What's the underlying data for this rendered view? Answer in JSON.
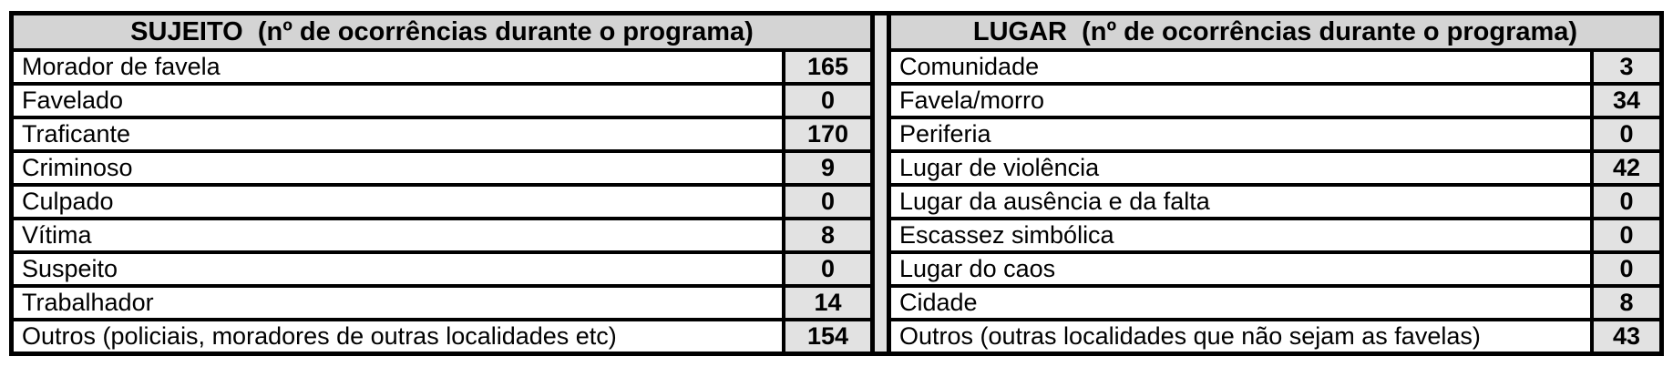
{
  "colors": {
    "border": "#000000",
    "header_bg": "#d4d4d4",
    "value_bg": "#e2e2e2",
    "row_bg": "#ffffff"
  },
  "tables": {
    "sujeito": {
      "header": "SUJEITO  (nº de ocorrências durante o programa)",
      "rows": [
        {
          "label": "Morador de favela",
          "value": "165"
        },
        {
          "label": "Favelado",
          "value": "0"
        },
        {
          "label": "Traficante",
          "value": "170"
        },
        {
          "label": "Criminoso",
          "value": "9"
        },
        {
          "label": "Culpado",
          "value": "0"
        },
        {
          "label": "Vítima",
          "value": "8"
        },
        {
          "label": "Suspeito",
          "value": "0"
        },
        {
          "label": "Trabalhador",
          "value": "14"
        },
        {
          "label": "Outros (policiais, moradores de outras localidades etc)",
          "value": "154"
        }
      ]
    },
    "lugar": {
      "header": "LUGAR  (nº de ocorrências durante o programa)",
      "rows": [
        {
          "label": "Comunidade",
          "value": "3"
        },
        {
          "label": "Favela/morro",
          "value": "34"
        },
        {
          "label": "Periferia",
          "value": "0"
        },
        {
          "label": "Lugar de violência",
          "value": "42"
        },
        {
          "label": "Lugar da ausência e da falta",
          "value": "0"
        },
        {
          "label": "Escassez simbólica",
          "value": "0"
        },
        {
          "label": "Lugar do caos",
          "value": "0"
        },
        {
          "label": "Cidade",
          "value": "8"
        },
        {
          "label": "Outros (outras localidades que não sejam as favelas)",
          "value": "43"
        }
      ]
    }
  }
}
